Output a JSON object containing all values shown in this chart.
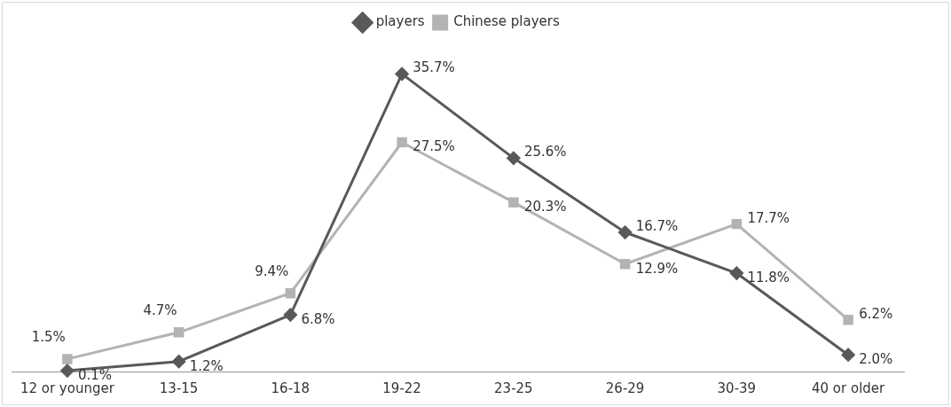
{
  "chart_data": {
    "type": "line",
    "categories": [
      "12 or younger",
      "13-15",
      "16-18",
      "19-22",
      "23-25",
      "26-29",
      "30-39",
      "40 or older"
    ],
    "series": [
      {
        "name": "players",
        "color": "#595959",
        "marker": "diamond",
        "values": [
          0.1,
          1.2,
          6.8,
          35.7,
          25.6,
          16.7,
          11.8,
          2.0
        ],
        "value_labels": [
          "0.1%",
          "1.2%",
          "6.8%",
          "35.7%",
          "25.6%",
          "16.7%",
          "11.8%",
          "2.0%"
        ]
      },
      {
        "name": "Chinese players",
        "color": "#b3b3b3",
        "marker": "square",
        "values": [
          1.5,
          4.7,
          9.4,
          27.5,
          20.3,
          12.9,
          17.7,
          6.2
        ],
        "value_labels": [
          "1.5%",
          "4.7%",
          "9.4%",
          "27.5%",
          "20.3%",
          "12.9%",
          "17.7%",
          "6.2%"
        ]
      }
    ],
    "legend": "top",
    "grid": false
  }
}
